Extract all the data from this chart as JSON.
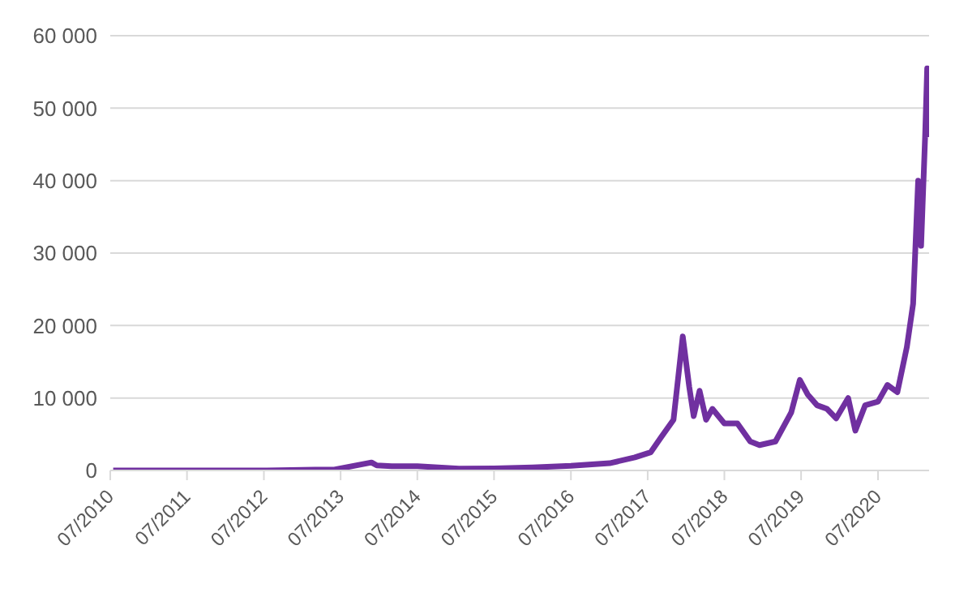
{
  "chart_data": {
    "type": "line",
    "x": [
      "2010-07-15",
      "2011-07-15",
      "2012-07-15",
      "2013-03-01",
      "2013-06-01",
      "2013-11-25",
      "2013-12-20",
      "2014-03-01",
      "2014-07-01",
      "2015-01-15",
      "2015-07-01",
      "2016-01-01",
      "2016-07-01",
      "2017-01-01",
      "2017-05-01",
      "2017-07-15",
      "2017-09-01",
      "2017-11-01",
      "2017-12-15",
      "2018-01-15",
      "2018-02-05",
      "2018-03-05",
      "2018-04-05",
      "2018-05-05",
      "2018-07-01",
      "2018-09-01",
      "2018-11-01",
      "2018-12-15",
      "2019-03-01",
      "2019-05-15",
      "2019-06-25",
      "2019-08-01",
      "2019-09-15",
      "2019-11-01",
      "2019-12-15",
      "2020-02-10",
      "2020-03-15",
      "2020-05-01",
      "2020-07-01",
      "2020-08-15",
      "2020-10-01",
      "2020-11-15",
      "2020-12-15",
      "2021-01-08",
      "2021-01-22",
      "2021-02-10",
      "2021-02-20",
      "2021-02-26"
    ],
    "series": [
      {
        "color": "#7030a0",
        "values": [
          0,
          10,
          8,
          100,
          120,
          1100,
          700,
          600,
          600,
          250,
          280,
          430,
          650,
          1000,
          1800,
          2500,
          4500,
          7000,
          18500,
          11500,
          7500,
          11000,
          7000,
          8500,
          6500,
          6500,
          4000,
          3500,
          4000,
          8000,
          12500,
          10500,
          9000,
          8500,
          7200,
          10000,
          5500,
          9000,
          9500,
          11800,
          10800,
          17000,
          23000,
          40000,
          31000,
          46000,
          55500,
          46000
        ]
      }
    ],
    "xlim": [
      "2010-07-01",
      "2021-03-01"
    ],
    "xticks": [
      {
        "value": "2010-07-01",
        "label": "07/2010"
      },
      {
        "value": "2011-07-01",
        "label": "07/2011"
      },
      {
        "value": "2012-07-01",
        "label": "07/2012"
      },
      {
        "value": "2013-07-01",
        "label": "07/2013"
      },
      {
        "value": "2014-07-01",
        "label": "07/2014"
      },
      {
        "value": "2015-07-01",
        "label": "07/2015"
      },
      {
        "value": "2016-07-01",
        "label": "07/2016"
      },
      {
        "value": "2017-07-01",
        "label": "07/2017"
      },
      {
        "value": "2018-07-01",
        "label": "07/2018"
      },
      {
        "value": "2019-07-01",
        "label": "07/2019"
      },
      {
        "value": "2020-07-01",
        "label": "07/2020"
      }
    ],
    "ylim": [
      0,
      60000
    ],
    "yticks": [
      {
        "value": 0,
        "label": "0"
      },
      {
        "value": 10000,
        "label": "10 000"
      },
      {
        "value": 20000,
        "label": "20 000"
      },
      {
        "value": 30000,
        "label": "30 000"
      },
      {
        "value": 40000,
        "label": "40 000"
      },
      {
        "value": 50000,
        "label": "50 000"
      },
      {
        "value": 60000,
        "label": "60 000"
      }
    ],
    "grid": "y",
    "legend": false,
    "marker": "none",
    "line_style": "solid"
  }
}
